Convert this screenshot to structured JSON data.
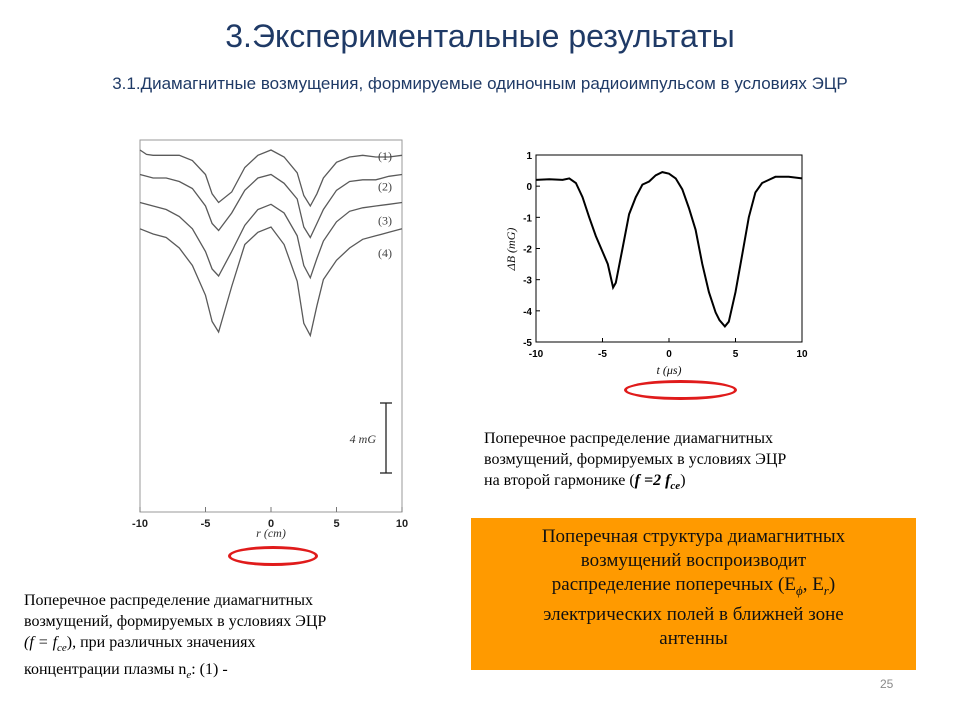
{
  "slide": {
    "title": "3.Экспериментальные результаты",
    "subtitle": "3.1.Диамагнитные возмущения, формируемые одиночным радиоимпульсом в условиях ЭЦР",
    "page_number": "25"
  },
  "captions": {
    "right_plot": [
      {
        "t": "Поперечное распределение диамагнитных",
        "s": ""
      },
      {
        "t": "возмущений, формируемых в условиях ЭЦР",
        "s": ""
      },
      {
        "t": "на второй гармонике (",
        "s": "",
        "f": "f =2 f",
        "sub": "ce",
        "end": ")"
      }
    ],
    "left_plot": [
      {
        "t": "Поперечное распределение диамагнитных"
      },
      {
        "t": "возмущений, формируемых в условиях ЭЦР"
      },
      {
        "t": "(f = f",
        "sub": "ce",
        "end": "),  при различных значениях"
      },
      {
        "t": "концентрации  плазмы n",
        "sub": "e",
        "end": ":  (1) -"
      }
    ]
  },
  "highlight_box": {
    "lines": [
      "Поперечная структура диамагнитных",
      "возмущений воспроизводит",
      "распределение поперечных (E",
      "электрических полей в ближней зоне",
      "антенны"
    ],
    "sub1": "ϕ",
    "mid": ", E",
    "sub2": "r",
    "tail": ")"
  },
  "chart_data": [
    {
      "type": "line",
      "xlabel": "r (cm)",
      "ylabel": "",
      "xlim": [
        -10,
        10
      ],
      "xticks": [
        -10,
        -5,
        0,
        5,
        10
      ],
      "grid": false,
      "scale_bar": {
        "label": "4 mG",
        "value": 4
      },
      "series": [
        {
          "name": "(1)",
          "x": [
            -10,
            -9.5,
            -9,
            -8,
            -7,
            -6,
            -5,
            -4.5,
            -4,
            -3,
            -2,
            -1,
            0,
            1,
            2,
            2.5,
            3,
            3.5,
            4,
            5,
            6,
            7,
            8,
            9,
            10
          ],
          "y": [
            0,
            -0.25,
            -0.3,
            -0.3,
            -0.3,
            -0.6,
            -1.4,
            -2.5,
            -3.0,
            -2.4,
            -1.0,
            -0.3,
            0,
            -0.4,
            -1.3,
            -2.6,
            -3.2,
            -2.5,
            -1.6,
            -0.7,
            -0.4,
            -0.3,
            -0.4,
            -0.4,
            -0.3
          ]
        },
        {
          "name": "(2)",
          "x": [
            -10,
            -9,
            -8,
            -7,
            -6,
            -5,
            -4.5,
            -4,
            -3,
            -2,
            -1,
            0,
            1,
            2,
            2.5,
            3,
            3.5,
            4,
            5,
            6,
            7,
            8,
            9,
            10
          ],
          "y": [
            -1.4,
            -1.6,
            -1.6,
            -1.8,
            -2.2,
            -3.2,
            -4.2,
            -4.6,
            -3.6,
            -2.3,
            -1.6,
            -1.4,
            -1.9,
            -2.8,
            -4.4,
            -5.0,
            -4.2,
            -3.4,
            -2.3,
            -1.8,
            -1.7,
            -1.7,
            -1.5,
            -1.4
          ]
        },
        {
          "name": "(3)",
          "x": [
            -10,
            -9,
            -8,
            -7,
            -6,
            -5,
            -4.5,
            -4,
            -3,
            -2,
            -1,
            0,
            1,
            2,
            2.5,
            3,
            3.5,
            4,
            5,
            6,
            7,
            8,
            9,
            10
          ],
          "y": [
            -3.0,
            -3.2,
            -3.4,
            -3.8,
            -4.5,
            -5.8,
            -6.8,
            -7.2,
            -5.8,
            -4.3,
            -3.4,
            -3.1,
            -3.6,
            -4.9,
            -6.6,
            -7.3,
            -6.2,
            -5.2,
            -4.1,
            -3.5,
            -3.3,
            -3.2,
            -3.1,
            -3.0
          ]
        },
        {
          "name": "(4)",
          "x": [
            -10,
            -9,
            -8,
            -7,
            -6,
            -5,
            -4.5,
            -4,
            -3,
            -2,
            -1,
            0,
            1,
            2,
            2.5,
            3,
            3.5,
            4,
            5,
            6,
            7,
            8,
            9,
            10
          ],
          "y": [
            -4.5,
            -4.8,
            -5.0,
            -5.6,
            -6.6,
            -8.3,
            -9.8,
            -10.4,
            -7.8,
            -5.4,
            -4.7,
            -4.4,
            -5.4,
            -7.5,
            -9.9,
            -10.6,
            -8.9,
            -7.4,
            -6.3,
            -5.6,
            -5.1,
            -4.9,
            -4.7,
            -4.5
          ]
        }
      ]
    },
    {
      "type": "line",
      "xlabel": "t (μs)",
      "ylabel": "ΔB (mG)",
      "xlim": [
        -10,
        10
      ],
      "ylim": [
        -5,
        1
      ],
      "xticks": [
        -10,
        -5,
        0,
        5,
        10
      ],
      "yticks": [
        1,
        0,
        -1,
        -2,
        -3,
        -4,
        -5
      ],
      "grid": false,
      "series": [
        {
          "x": [
            -10,
            -9,
            -8,
            -7.5,
            -7,
            -6.5,
            -6,
            -5.5,
            -5,
            -4.6,
            -4.2,
            -4,
            -3.5,
            -3,
            -2.5,
            -2,
            -1.5,
            -1,
            -0.5,
            0,
            0.5,
            1,
            1.5,
            2,
            2.5,
            3,
            3.5,
            3.8,
            4.2,
            4.5,
            5,
            5.5,
            6,
            6.5,
            7,
            7.5,
            8,
            9,
            10
          ],
          "y": [
            0.2,
            0.22,
            0.2,
            0.25,
            0.1,
            -0.35,
            -1.0,
            -1.6,
            -2.1,
            -2.5,
            -3.25,
            -3.1,
            -2.0,
            -0.9,
            -0.35,
            0.05,
            0.15,
            0.35,
            0.45,
            0.4,
            0.25,
            -0.1,
            -0.7,
            -1.4,
            -2.5,
            -3.4,
            -4.05,
            -4.3,
            -4.5,
            -4.35,
            -3.4,
            -2.2,
            -1.0,
            -0.2,
            0.1,
            0.2,
            0.3,
            0.3,
            0.25
          ]
        }
      ]
    }
  ]
}
